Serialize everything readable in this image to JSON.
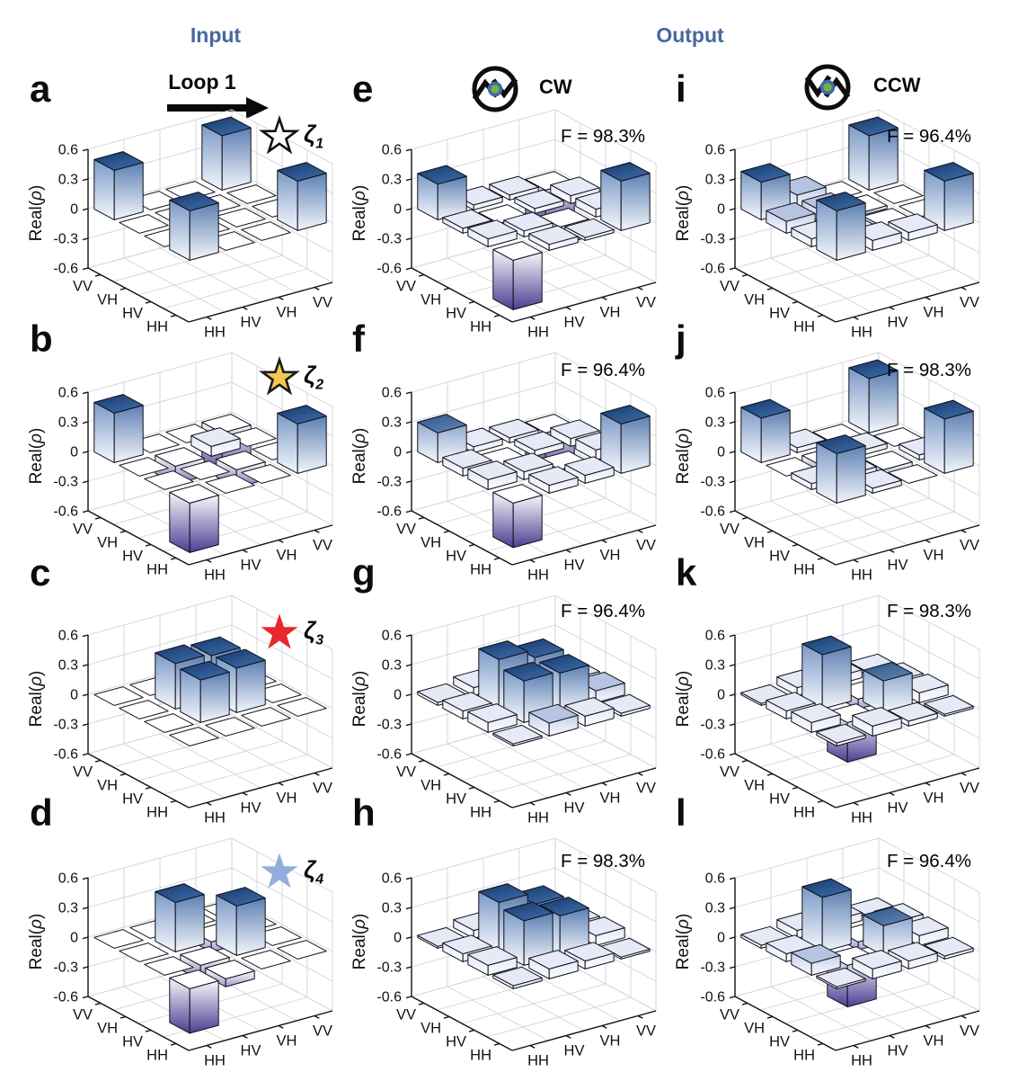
{
  "header": {
    "input_label": "Input",
    "output_label": "Output",
    "loop_label": "Loop 1",
    "cw_label": "CW",
    "ccw_label": "CCW"
  },
  "icons": {
    "rotation_circle_color": "#0d0d0d",
    "dot_green": "#76b043",
    "dot_ring_blue": "#3f69a8",
    "arrow_color": "#0a0a0a"
  },
  "colors": {
    "header_blue": "#46679f",
    "bar_top_navy": "#1d4680",
    "bar_mid_blue": "#3f6ba3",
    "bar_light_lavender": "#e6eaf6",
    "negative_purple": "#4b3e92",
    "grid_gray": "#d2d3da",
    "star_white": "#ffffff",
    "star_gold": "#f2c84f",
    "star_red": "#e8282c",
    "star_lightblue": "#92aedd"
  },
  "chart_data": {
    "type": "bar3d-grid",
    "zlabel": "Real(ρ)",
    "ztick_labels": [
      "0.6",
      "0.3",
      "0",
      "-0.3",
      "-0.6"
    ],
    "zlim": [
      -0.6,
      0.6
    ],
    "basis": [
      "HH",
      "HV",
      "VH",
      "VV"
    ],
    "grid_on": true,
    "panels": [
      {
        "letter": "a",
        "group": "Input",
        "grid_row": 0,
        "grid_col": 0,
        "marker": {
          "shape": "star",
          "fill": "#ffffff",
          "stroke": "#111111",
          "label": "ζ",
          "sub": "1"
        },
        "matrix": [
          [
            0.5,
            0,
            0,
            0.5
          ],
          [
            0,
            0,
            0,
            0
          ],
          [
            0,
            0,
            0,
            0
          ],
          [
            0.5,
            0,
            0,
            0.55
          ]
        ]
      },
      {
        "letter": "b",
        "group": "Input",
        "grid_row": 1,
        "grid_col": 0,
        "marker": {
          "shape": "star",
          "fill": "#f2c84f",
          "stroke": "#1a1a1a",
          "label": "ζ",
          "sub": "2"
        },
        "matrix": [
          [
            -0.5,
            0,
            0,
            0.5
          ],
          [
            0,
            0,
            -0.18,
            0
          ],
          [
            0,
            -0.18,
            0.1,
            0
          ],
          [
            0.5,
            0,
            0,
            -0.45
          ]
        ]
      },
      {
        "letter": "c",
        "group": "Input",
        "grid_row": 2,
        "grid_col": 0,
        "marker": {
          "shape": "star",
          "fill": "#e8282c",
          "stroke": "#e8282c",
          "label": "ζ",
          "sub": "3"
        },
        "matrix": [
          [
            0,
            0,
            0,
            0
          ],
          [
            0,
            0.43,
            0.45,
            0
          ],
          [
            0,
            0.46,
            0.44,
            0
          ],
          [
            0,
            0,
            0,
            0
          ]
        ]
      },
      {
        "letter": "d",
        "group": "Input",
        "grid_row": 3,
        "grid_col": 0,
        "marker": {
          "shape": "star",
          "fill": "#92aedd",
          "stroke": "#92aedd",
          "label": "ζ",
          "sub": "4"
        },
        "matrix": [
          [
            -0.45,
            -0.08,
            0,
            0
          ],
          [
            0,
            -0.15,
            0.5,
            0
          ],
          [
            0,
            0.5,
            -0.1,
            0
          ],
          [
            0,
            0,
            0,
            0
          ]
        ]
      },
      {
        "letter": "e",
        "group": "CW",
        "grid_row": 0,
        "grid_col": 1,
        "fidelity": "F = 98.3%",
        "matrix": [
          [
            -0.5,
            0.06,
            0.03,
            0.5
          ],
          [
            0.08,
            0.06,
            -0.18,
            0.08
          ],
          [
            0.05,
            -0.15,
            0.05,
            0.08
          ],
          [
            0.36,
            0.05,
            0.05,
            -0.4
          ]
        ]
      },
      {
        "letter": "f",
        "group": "CW",
        "grid_row": 1,
        "grid_col": 1,
        "fidelity": "F = 96.4%",
        "matrix": [
          [
            -0.45,
            0.08,
            0.08,
            0.5
          ],
          [
            0.1,
            0.08,
            -0.15,
            0.1
          ],
          [
            0.08,
            -0.15,
            0.06,
            0.08
          ],
          [
            0.3,
            0.06,
            0.05,
            -0.4
          ]
        ]
      },
      {
        "letter": "g",
        "group": "CW",
        "grid_row": 2,
        "grid_col": 1,
        "fidelity": "F = 96.4%",
        "matrix": [
          [
            0.02,
            0.13,
            0.1,
            0.03
          ],
          [
            0.1,
            0.42,
            0.4,
            0.12
          ],
          [
            0.08,
            0.5,
            0.42,
            0.1
          ],
          [
            0.03,
            0.08,
            0.08,
            0.02
          ]
        ]
      },
      {
        "letter": "h",
        "group": "CW",
        "grid_row": 3,
        "grid_col": 1,
        "fidelity": "F = 98.3%",
        "matrix": [
          [
            0.03,
            0.1,
            0.08,
            0.02
          ],
          [
            0.1,
            0.45,
            0.4,
            0.1
          ],
          [
            0.08,
            0.5,
            0.38,
            0.08
          ],
          [
            0.02,
            0.08,
            0.08,
            0.03
          ]
        ]
      },
      {
        "letter": "i",
        "group": "CCW",
        "grid_row": 0,
        "grid_col": 2,
        "fidelity": "F = 96.4%",
        "matrix": [
          [
            0.5,
            0.1,
            0.08,
            0.5
          ],
          [
            0.08,
            0.03,
            -0.04,
            0
          ],
          [
            0.12,
            0.12,
            -0.03,
            0
          ],
          [
            0.38,
            0.15,
            0,
            0.55
          ]
        ]
      },
      {
        "letter": "j",
        "group": "CCW",
        "grid_row": 1,
        "grid_col": 2,
        "fidelity": "F = 98.3%",
        "matrix": [
          [
            0.5,
            0.05,
            0,
            0.55
          ],
          [
            0.06,
            0.05,
            -0.1,
            0.05
          ],
          [
            0,
            -0.08,
            0.05,
            0
          ],
          [
            0.45,
            0.05,
            0,
            0.55
          ]
        ]
      },
      {
        "letter": "k",
        "group": "CCW",
        "grid_row": 2,
        "grid_col": 2,
        "fidelity": "F = 98.3%",
        "matrix": [
          [
            0.03,
            0.1,
            0.05,
            0.02
          ],
          [
            0.1,
            -0.4,
            0.32,
            0.1
          ],
          [
            0.08,
            0.55,
            -0.1,
            0.08
          ],
          [
            0.02,
            0.08,
            0.08,
            0.03
          ]
        ]
      },
      {
        "letter": "l",
        "group": "CCW",
        "grid_row": 3,
        "grid_col": 2,
        "fidelity": "F = 96.4%",
        "matrix": [
          [
            0.02,
            0.1,
            0.08,
            0.03
          ],
          [
            0.12,
            -0.42,
            0.3,
            0.1
          ],
          [
            0.08,
            0.55,
            -0.08,
            0.1
          ],
          [
            0.03,
            0.08,
            0.08,
            0.02
          ]
        ]
      }
    ]
  }
}
